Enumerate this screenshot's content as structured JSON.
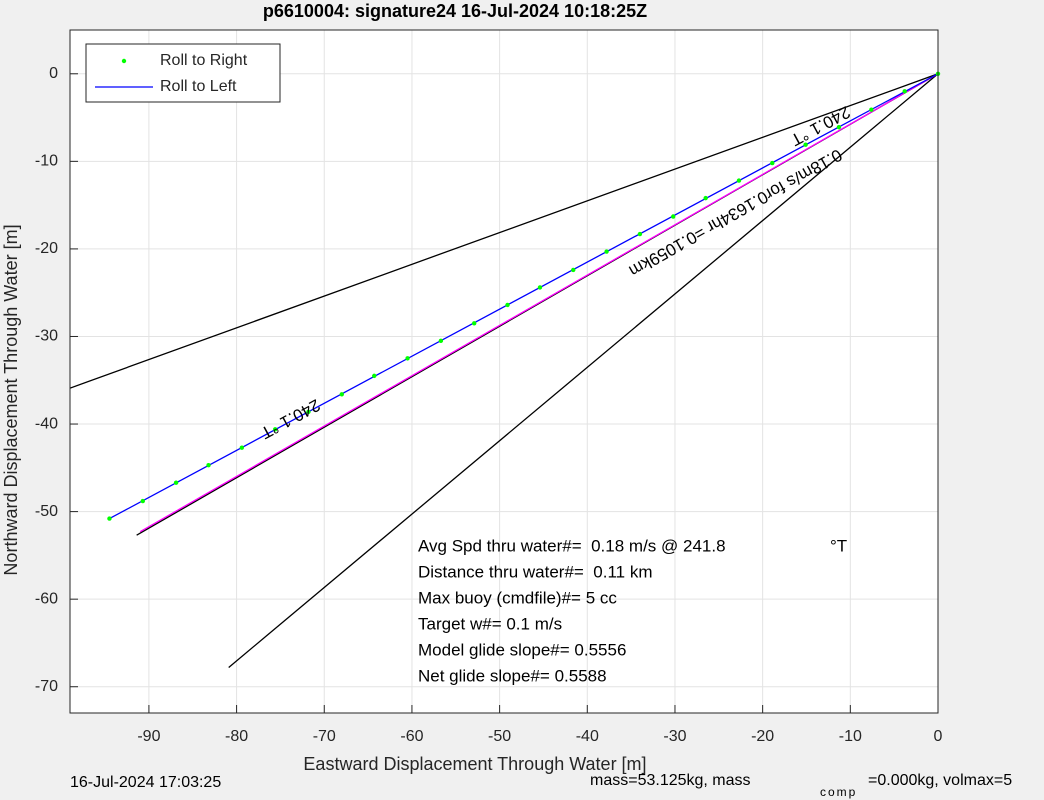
{
  "chart_data": {
    "type": "line",
    "title": "p6610004: signature24 16-Jul-2024 10:18:25Z",
    "xlabel": "Eastward Displacement Through Water [m]",
    "ylabel": "Northward Displacement Through Water [m]",
    "xlim": [
      -99,
      0
    ],
    "ylim": [
      -73,
      5
    ],
    "xticks": [
      -90,
      -80,
      -70,
      -60,
      -50,
      -40,
      -30,
      -20,
      -10,
      0
    ],
    "yticks": [
      -70,
      -60,
      -50,
      -40,
      -30,
      -20,
      -10,
      0
    ],
    "grid": true,
    "legend": "upper left",
    "series": [
      {
        "name": "Roll to Right",
        "color": "#00ff00",
        "marker": "dot",
        "x": [
          0,
          -3.8,
          -7.6,
          -11.3,
          -15.1,
          -18.9,
          -22.7,
          -26.5,
          -30.2,
          -34.0,
          -37.8,
          -41.6,
          -45.4,
          -49.1,
          -52.9,
          -56.7,
          -60.5,
          -64.3,
          -68.0,
          -71.8,
          -75.6,
          -79.4,
          -83.2,
          -86.9,
          -90.7,
          -94.5
        ],
        "values": [
          0,
          -2.0,
          -4.1,
          -6.1,
          -8.1,
          -10.2,
          -12.2,
          -14.2,
          -16.3,
          -18.3,
          -20.3,
          -22.4,
          -24.4,
          -26.4,
          -28.5,
          -30.5,
          -32.5,
          -34.5,
          -36.6,
          -38.6,
          -40.6,
          -42.7,
          -44.7,
          -46.7,
          -48.8,
          -50.8
        ]
      },
      {
        "name": "Roll to Left",
        "color": "#0000ff",
        "marker": "line",
        "x": [
          0,
          -94.5
        ],
        "values": [
          0,
          -50.8
        ]
      }
    ],
    "reference_lines": [
      {
        "color": "#000000",
        "x": [
          0,
          -99
        ],
        "values": [
          0,
          -35.9
        ]
      },
      {
        "color": "#000000",
        "x": [
          0,
          -80.9
        ],
        "values": [
          0,
          -67.8
        ]
      },
      {
        "color": "#000000",
        "x": [
          0,
          -91.4
        ],
        "values": [
          0,
          -52.7
        ]
      },
      {
        "color": "#ff00ff",
        "x": [
          0,
          -91.0
        ],
        "values": [
          0,
          -52.3
        ]
      }
    ],
    "annotations": [
      "240.1 °T",
      "0.18m/s for0.1634hr =0.1059km",
      "240.1 °T"
    ],
    "info": [
      "Avg Spd thru water#=  0.18 m/s @ 241.8",
      "°T",
      "Distance thru water#=  0.11 km",
      "Max buoy (cmdfile)#= 5 cc",
      "Target w#= 0.1 m/s",
      "Model glide slope#= 0.5556",
      "Net glide slope#= 0.5588"
    ],
    "footer": [
      "16-Jul-2024 17:03:25",
      "mass=53.125kg, mass",
      "comp",
      "=0.000kg, volmax=5"
    ]
  }
}
